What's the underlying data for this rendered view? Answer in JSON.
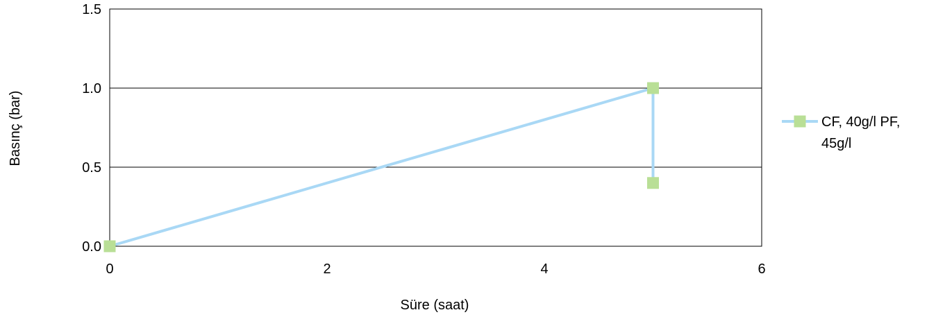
{
  "chart_data": {
    "type": "scatter",
    "title": "",
    "xlabel": "Süre (saat)",
    "ylabel": "Basınç (bar)",
    "xlim": [
      0,
      6
    ],
    "ylim": [
      0,
      1.5
    ],
    "xticks": [
      "0",
      "2",
      "4",
      "6"
    ],
    "yticks": [
      "0.0",
      "0.5",
      "1.0",
      "1.5"
    ],
    "grid": "horizontal",
    "legend": "right",
    "series": [
      {
        "name": "CF, 40g/l PF, 45g/l",
        "legend_lines": [
          "CF, 40g/l PF,",
          "45g/l"
        ],
        "line_color": "#a9d8f5",
        "marker_color": "#b9df96",
        "marker": "square",
        "points": [
          {
            "x": 0,
            "y": 0
          },
          {
            "x": 5,
            "y": 1.0
          },
          {
            "x": 5,
            "y": 0.4
          }
        ]
      }
    ]
  }
}
